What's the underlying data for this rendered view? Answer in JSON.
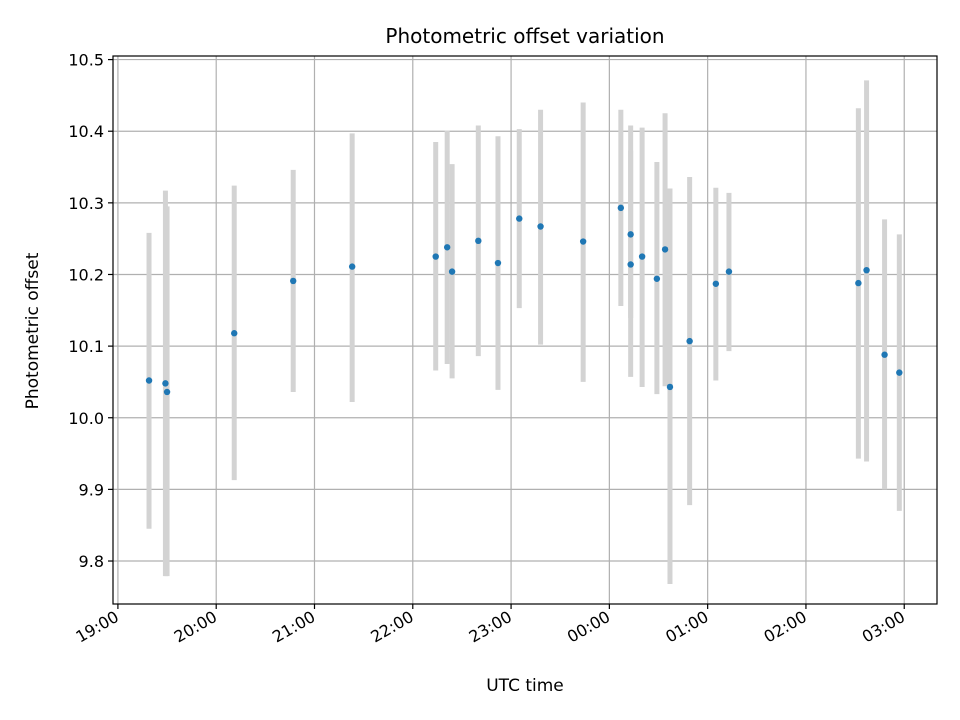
{
  "chart_data": {
    "type": "scatter",
    "title": "Photometric offset variation",
    "xlabel": "UTC time",
    "ylabel": "Photometric offset",
    "x_axis_type": "time",
    "x_ticks": [
      "19:00",
      "20:00",
      "21:00",
      "22:00",
      "23:00",
      "00:00",
      "01:00",
      "02:00",
      "03:00"
    ],
    "x_tick_hours": [
      19,
      20,
      21,
      22,
      23,
      24,
      25,
      26,
      27
    ],
    "xlim": [
      "18:57",
      "03:20"
    ],
    "y_ticks": [
      "9.8",
      "9.9",
      "10.0",
      "10.1",
      "10.2",
      "10.3",
      "10.4",
      "10.5"
    ],
    "y_tick_values": [
      9.8,
      9.9,
      10.0,
      10.1,
      10.2,
      10.3,
      10.4,
      10.5
    ],
    "ylim": [
      9.74,
      10.505
    ],
    "grid": true,
    "colors": {
      "marker": "#1f77b4",
      "errorbar": "#d3d3d3",
      "grid": "#b0b0b0"
    },
    "points": [
      {
        "t": "19:19",
        "y": 10.052,
        "low": 9.845,
        "high": 10.258
      },
      {
        "t": "19:29",
        "y": 10.048,
        "low": 9.779,
        "high": 10.317
      },
      {
        "t": "19:30",
        "y": 10.036,
        "low": 9.779,
        "high": 10.295
      },
      {
        "t": "20:11",
        "y": 10.118,
        "low": 9.913,
        "high": 10.324
      },
      {
        "t": "20:47",
        "y": 10.191,
        "low": 10.036,
        "high": 10.346
      },
      {
        "t": "21:23",
        "y": 10.211,
        "low": 10.022,
        "high": 10.397
      },
      {
        "t": "22:14",
        "y": 10.225,
        "low": 10.066,
        "high": 10.385
      },
      {
        "t": "22:21",
        "y": 10.238,
        "low": 10.075,
        "high": 10.401
      },
      {
        "t": "22:24",
        "y": 10.204,
        "low": 10.055,
        "high": 10.354
      },
      {
        "t": "22:40",
        "y": 10.247,
        "low": 10.086,
        "high": 10.408
      },
      {
        "t": "22:52",
        "y": 10.216,
        "low": 10.039,
        "high": 10.393
      },
      {
        "t": "23:05",
        "y": 10.278,
        "low": 10.153,
        "high": 10.403
      },
      {
        "t": "23:18",
        "y": 10.267,
        "low": 10.102,
        "high": 10.43
      },
      {
        "t": "23:44",
        "y": 10.246,
        "low": 10.05,
        "high": 10.44
      },
      {
        "t": "00:07",
        "y": 10.293,
        "low": 10.156,
        "high": 10.43
      },
      {
        "t": "00:13",
        "y": 10.256,
        "low": 10.139,
        "high": 10.373
      },
      {
        "t": "00:13",
        "y": 10.214,
        "low": 10.057,
        "high": 10.408
      },
      {
        "t": "00:20",
        "y": 10.225,
        "low": 10.043,
        "high": 10.405
      },
      {
        "t": "00:29",
        "y": 10.194,
        "low": 10.033,
        "high": 10.357
      },
      {
        "t": "00:34",
        "y": 10.235,
        "low": 10.044,
        "high": 10.425
      },
      {
        "t": "00:37",
        "y": 10.043,
        "low": 9.768,
        "high": 10.32
      },
      {
        "t": "00:49",
        "y": 10.107,
        "low": 9.878,
        "high": 10.336
      },
      {
        "t": "01:05",
        "y": 10.187,
        "low": 10.052,
        "high": 10.321
      },
      {
        "t": "01:13",
        "y": 10.204,
        "low": 10.093,
        "high": 10.314
      },
      {
        "t": "02:32",
        "y": 10.188,
        "low": 9.943,
        "high": 10.432
      },
      {
        "t": "02:37",
        "y": 10.206,
        "low": 9.939,
        "high": 10.471
      },
      {
        "t": "02:48",
        "y": 10.088,
        "low": 9.9,
        "high": 10.277
      },
      {
        "t": "02:57",
        "y": 10.063,
        "low": 9.87,
        "high": 10.256
      }
    ]
  }
}
